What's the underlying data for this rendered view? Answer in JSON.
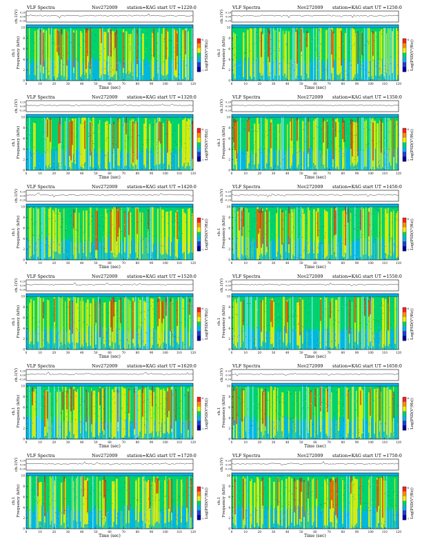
{
  "chart_data": [
    {
      "type": "heatmap",
      "title": "VLF Spectra",
      "date": "Nov272009",
      "station": "station=KAG",
      "start_ut": "start  UT  =1220:0",
      "seed": 11
    },
    {
      "type": "heatmap",
      "title": "VLF Spectra",
      "date": "Nov272009",
      "station": "station=KAG",
      "start_ut": "start  UT  =1250:0",
      "seed": 23
    },
    {
      "type": "heatmap",
      "title": "VLF Spectra",
      "date": "Nov272009",
      "station": "station=KAG",
      "start_ut": "start  UT  =1320:0",
      "seed": 37
    },
    {
      "type": "heatmap",
      "title": "VLF Spectra",
      "date": "Nov272009",
      "station": "station=KAG",
      "start_ut": "start  UT  =1350:0",
      "seed": 41
    },
    {
      "type": "heatmap",
      "title": "VLF Spectra",
      "date": "Nov272009",
      "station": "station=KAG",
      "start_ut": "start  UT  =1420:0",
      "seed": 53
    },
    {
      "type": "heatmap",
      "title": "VLF Spectra",
      "date": "Nov272009",
      "station": "station=KAG",
      "start_ut": "start  UT  =1450:0",
      "seed": 67
    },
    {
      "type": "heatmap",
      "title": "VLF Spectra",
      "date": "Nov272009",
      "station": "station=KAG",
      "start_ut": "start  UT  =1520:0",
      "seed": 71
    },
    {
      "type": "heatmap",
      "title": "VLF Spectra",
      "date": "Nov272009",
      "station": "station=KAG",
      "start_ut": "start  UT  =1550:0",
      "seed": 83
    },
    {
      "type": "heatmap",
      "title": "VLF Spectra",
      "date": "Nov272009",
      "station": "station=KAG",
      "start_ut": "start  UT  =1620:0",
      "seed": 97
    },
    {
      "type": "heatmap",
      "title": "VLF Spectra",
      "date": "Nov272009",
      "station": "station=KAG",
      "start_ut": "start  UT  =1650:0",
      "seed": 101
    },
    {
      "type": "heatmap",
      "title": "VLF Spectra",
      "date": "Nov272009",
      "station": "station=KAG",
      "start_ut": "start  UT  =1720:0",
      "seed": 113
    },
    {
      "type": "heatmap",
      "title": "VLF Spectra",
      "date": "Nov272009",
      "station": "station=KAG",
      "start_ut": "start  UT  =1750:0",
      "seed": 127
    }
  ],
  "axes": {
    "ch_label": "ch.1(V)",
    "ch_ticks": [
      "0.20",
      "0.00",
      "-0.20"
    ],
    "ylabel": "Frequency  (kHz)",
    "ylabel_side": "ch.1",
    "y_ticks": [
      0,
      2,
      4,
      6,
      8,
      10
    ],
    "ylim": [
      0,
      10
    ],
    "xlabel": "Time  (sec)",
    "x_ticks": [
      0,
      10,
      20,
      30,
      40,
      50,
      60,
      70,
      80,
      90,
      100,
      110,
      120
    ],
    "xlim": [
      0,
      120
    ],
    "colorbar_label": "Log(PSD(V²/Hz))",
    "colorbar_ticks": [
      "-6",
      "-7"
    ]
  },
  "colors": {
    "low": "#00b4f0",
    "mid": "#00d26e",
    "high": "#f0f000",
    "peak": "#e00000"
  }
}
